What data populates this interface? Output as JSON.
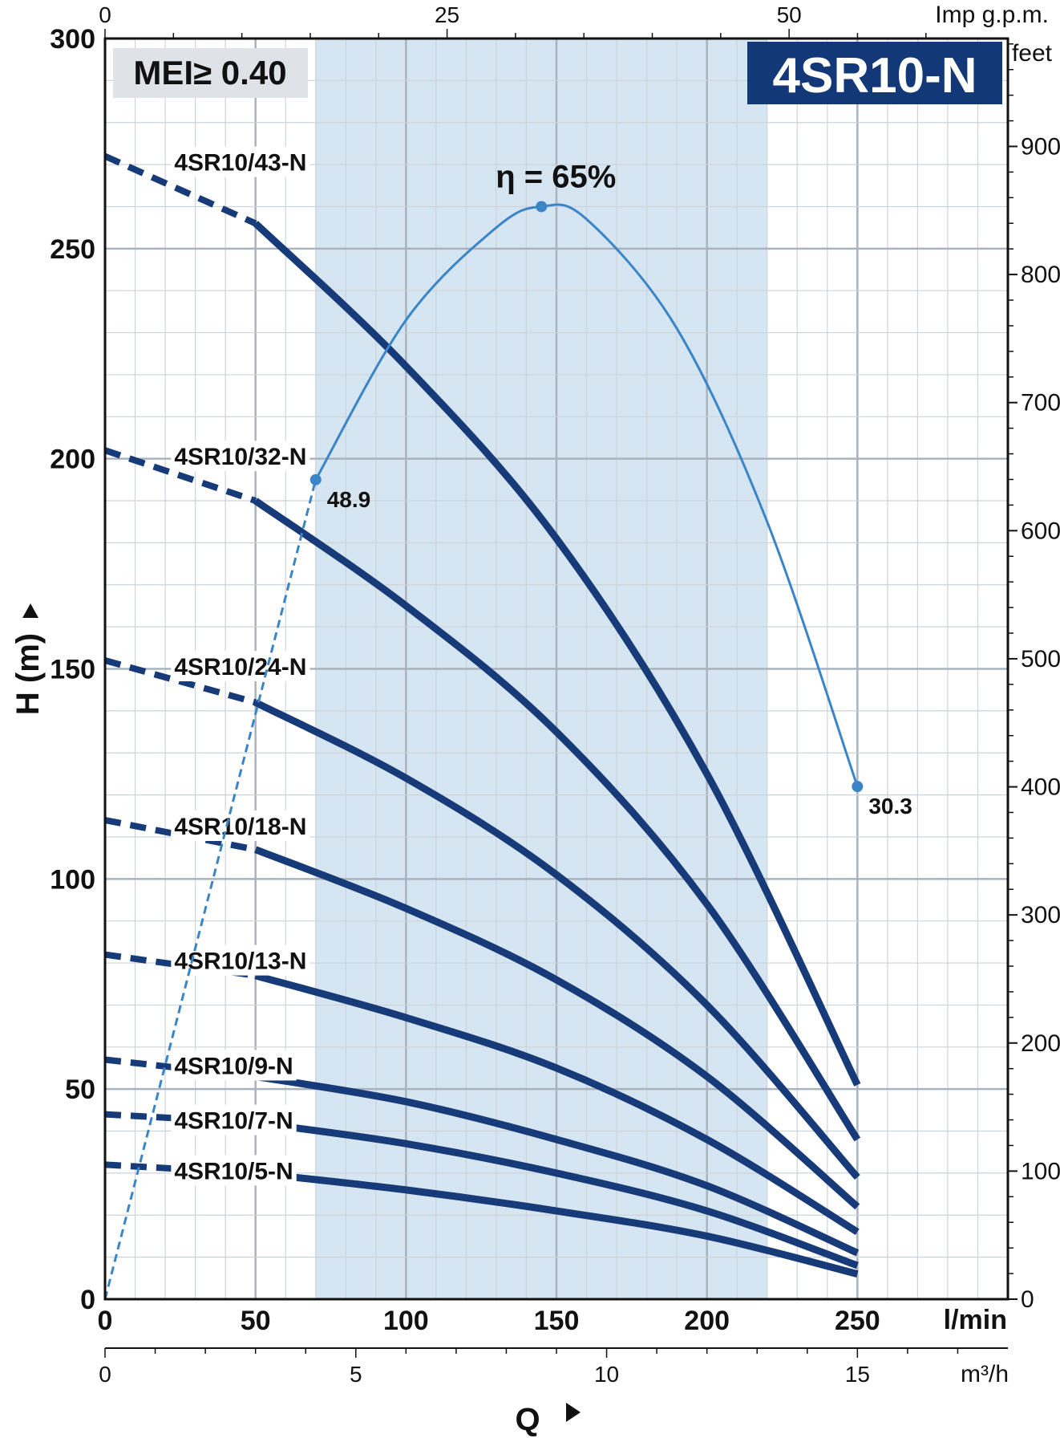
{
  "chart_data": {
    "type": "line",
    "title": "4SR10-N",
    "badge": "MEI≥ 0.40",
    "xlabel": "Q",
    "ylabel": "H (m)",
    "x_unit": "l/min",
    "secondary_x_top_unit": "Imp g.p.m.",
    "secondary_x_bottom_unit": "m³/h",
    "secondary_y_unit": "feet",
    "xlim": [
      0,
      300
    ],
    "ylim": [
      0,
      300
    ],
    "x_ticks": [
      "0",
      "50",
      "100",
      "150",
      "200",
      "250"
    ],
    "y_ticks": [
      "0",
      "50",
      "100",
      "150",
      "200",
      "250",
      "300"
    ],
    "feet_ticks": [
      "0",
      "100",
      "200",
      "300",
      "400",
      "500",
      "600",
      "700",
      "800",
      "900"
    ],
    "imp_gpm_ticks": [
      "0",
      "25",
      "50"
    ],
    "m3h_ticks": [
      "0",
      "5",
      "10",
      "15"
    ],
    "recommended_range": [
      70,
      220
    ],
    "grid": true,
    "series": [
      {
        "name": "4SR10/43-N",
        "dashed_x": [
          0,
          50
        ],
        "dashed_y": [
          272,
          256
        ],
        "x": [
          50,
          100,
          150,
          200,
          250
        ],
        "y": [
          256,
          222,
          181,
          125,
          51
        ]
      },
      {
        "name": "4SR10/32-N",
        "dashed_x": [
          0,
          50
        ],
        "dashed_y": [
          202,
          190
        ],
        "x": [
          50,
          100,
          150,
          200,
          250
        ],
        "y": [
          190,
          165,
          135,
          94,
          38
        ]
      },
      {
        "name": "4SR10/24-N",
        "dashed_x": [
          0,
          50
        ],
        "dashed_y": [
          152,
          142
        ],
        "x": [
          50,
          100,
          150,
          200,
          250
        ],
        "y": [
          142,
          124,
          101,
          70,
          29
        ]
      },
      {
        "name": "4SR10/18-N",
        "dashed_x": [
          0,
          50
        ],
        "dashed_y": [
          114,
          107
        ],
        "x": [
          50,
          100,
          150,
          200,
          250
        ],
        "y": [
          107,
          93,
          76,
          53,
          22
        ]
      },
      {
        "name": "4SR10/13-N",
        "dashed_x": [
          0,
          50
        ],
        "dashed_y": [
          82,
          77
        ],
        "x": [
          50,
          100,
          150,
          200,
          250
        ],
        "y": [
          77,
          67,
          55,
          38,
          16
        ]
      },
      {
        "name": "4SR10/9-N",
        "dashed_x": [
          0,
          50
        ],
        "dashed_y": [
          57,
          53
        ],
        "x": [
          50,
          100,
          150,
          200,
          250
        ],
        "y": [
          53,
          47,
          38,
          27,
          11
        ]
      },
      {
        "name": "4SR10/7-N",
        "dashed_x": [
          0,
          50
        ],
        "dashed_y": [
          44,
          42
        ],
        "x": [
          50,
          100,
          150,
          200,
          250
        ],
        "y": [
          42,
          37,
          30,
          21,
          8
        ]
      },
      {
        "name": "4SR10/5-N",
        "dashed_x": [
          0,
          50
        ],
        "dashed_y": [
          32,
          30
        ],
        "x": [
          50,
          100,
          150,
          200,
          250
        ],
        "y": [
          30,
          26,
          21,
          15,
          6
        ]
      }
    ],
    "efficiency": {
      "label": "η = 65%",
      "dashed_x": [
        0,
        70
      ],
      "dashed_y": [
        0,
        195
      ],
      "x": [
        70,
        100,
        130,
        145,
        160,
        190,
        220,
        250
      ],
      "y": [
        195,
        233,
        255,
        260,
        257,
        231,
        185,
        122
      ],
      "points": [
        {
          "x": 70,
          "y": 195,
          "label": "48.9"
        },
        {
          "x": 145,
          "y": 260,
          "label": ""
        },
        {
          "x": 250,
          "y": 122,
          "label": "30.3"
        }
      ]
    },
    "colors": {
      "curve": "#173a78",
      "efficiency": "#3a85c8",
      "band": "#d6e5f2",
      "badge": "#123878"
    }
  }
}
